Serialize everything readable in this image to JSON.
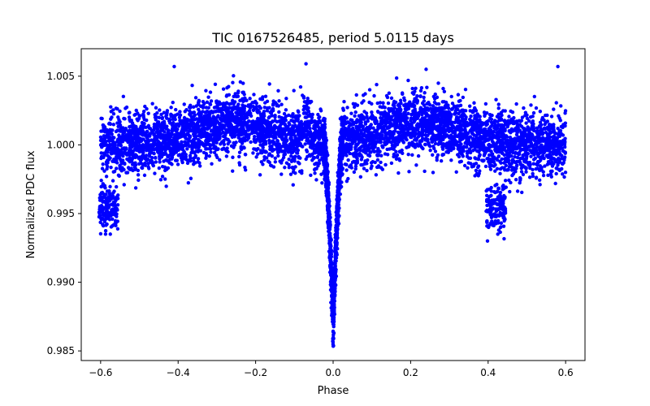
{
  "chart_data": {
    "type": "scatter",
    "title": "TIC 0167526485, period 5.0115 days",
    "xlabel": "Phase",
    "ylabel": "Normalized PDC flux",
    "xlim": [
      -0.65,
      0.65
    ],
    "ylim": [
      0.9843,
      1.007
    ],
    "xticks": [
      -0.6,
      -0.4,
      -0.2,
      0.0,
      0.2,
      0.4,
      0.6
    ],
    "xtick_labels": [
      "−0.6",
      "−0.4",
      "−0.2",
      "0.0",
      "0.2",
      "0.4",
      "0.6"
    ],
    "yticks": [
      0.985,
      0.99,
      0.995,
      1.0,
      1.005
    ],
    "ytick_labels": [
      "0.985",
      "0.990",
      "0.995",
      "1.000",
      "1.005"
    ],
    "grid": false,
    "marker_color": "#0000ff",
    "series": [
      {
        "phase_range": [
          -0.6,
          0.6
        ],
        "baseline_flux": 1.0,
        "scatter_amplitude": 0.0013,
        "primary_eclipse": {
          "center_phase": 0.0,
          "depth_flux_min": 0.9855,
          "half_width_phase": 0.025
        },
        "secondary_dips": [
          {
            "center_phase": -0.58,
            "flux_min": 0.9935
          },
          {
            "center_phase": 0.42,
            "flux_min": 0.9935
          }
        ],
        "brightening_peaks": [
          {
            "center_phase": -0.25,
            "flux_max": 1.0045
          },
          {
            "center_phase": 0.22,
            "flux_max": 1.005
          }
        ],
        "outlier_highs": [
          {
            "phase": -0.41,
            "flux": 1.0057
          },
          {
            "phase": -0.07,
            "flux": 1.0059
          },
          {
            "phase": 0.24,
            "flux": 1.0055
          },
          {
            "phase": 0.58,
            "flux": 1.0057
          }
        ]
      }
    ]
  }
}
